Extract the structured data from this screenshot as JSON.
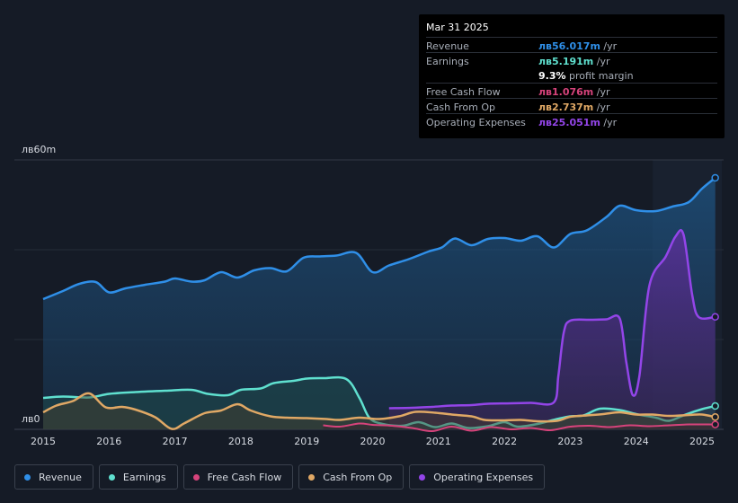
{
  "tooltip": {
    "date": "Mar 31 2025",
    "rows": {
      "revenue": {
        "label": "Revenue",
        "value": "лв56.017m",
        "unit": " /yr"
      },
      "earnings": {
        "label": "Earnings",
        "value": "лв5.191m",
        "unit": " /yr"
      },
      "margin": {
        "value": "9.3%",
        "text": " profit margin"
      },
      "fcf": {
        "label": "Free Cash Flow",
        "value": "лв1.076m",
        "unit": " /yr"
      },
      "cfo": {
        "label": "Cash From Op",
        "value": "лв2.737m",
        "unit": " /yr"
      },
      "opex": {
        "label": "Operating Expenses",
        "value": "лв25.051m",
        "unit": " /yr"
      }
    }
  },
  "legend": {
    "revenue": "Revenue",
    "earnings": "Earnings",
    "fcf": "Free Cash Flow",
    "cfo": "Cash From Op",
    "opex": "Operating Expenses"
  },
  "colors": {
    "revenue": "#2f8fe8",
    "earnings": "#5fe0cf",
    "fcf": "#d6437b",
    "cfo": "#e0a865",
    "opex": "#9345e8"
  },
  "chart_data": {
    "type": "area",
    "ylabel_top": "лв60m",
    "ylabel_bottom": "лв0",
    "ylim": [
      0,
      60
    ],
    "xlim": [
      2015,
      2025.3
    ],
    "x_ticks": [
      "2015",
      "2016",
      "2017",
      "2018",
      "2019",
      "2020",
      "2021",
      "2022",
      "2023",
      "2024",
      "2025"
    ],
    "forecast_start": 2024.25,
    "series": [
      {
        "key": "revenue",
        "name": "Revenue",
        "points": [
          [
            2015,
            29
          ],
          [
            2015.3,
            30.8
          ],
          [
            2015.55,
            32.4
          ],
          [
            2015.8,
            32.8
          ],
          [
            2016,
            30.5
          ],
          [
            2016.25,
            31.4
          ],
          [
            2016.55,
            32.2
          ],
          [
            2016.85,
            32.9
          ],
          [
            2017.0,
            33.6
          ],
          [
            2017.25,
            32.9
          ],
          [
            2017.45,
            33.2
          ],
          [
            2017.7,
            35.0
          ],
          [
            2017.95,
            33.8
          ],
          [
            2018.2,
            35.4
          ],
          [
            2018.45,
            35.9
          ],
          [
            2018.7,
            35.2
          ],
          [
            2018.95,
            38.2
          ],
          [
            2019.2,
            38.5
          ],
          [
            2019.45,
            38.7
          ],
          [
            2019.75,
            39.3
          ],
          [
            2020.0,
            35.0
          ],
          [
            2020.25,
            36.5
          ],
          [
            2020.55,
            37.9
          ],
          [
            2020.85,
            39.6
          ],
          [
            2021.05,
            40.5
          ],
          [
            2021.25,
            42.5
          ],
          [
            2021.5,
            41.0
          ],
          [
            2021.75,
            42.4
          ],
          [
            2022.0,
            42.6
          ],
          [
            2022.25,
            42.0
          ],
          [
            2022.5,
            43.0
          ],
          [
            2022.75,
            40.5
          ],
          [
            2023.0,
            43.5
          ],
          [
            2023.25,
            44.3
          ],
          [
            2023.55,
            47.3
          ],
          [
            2023.75,
            49.8
          ],
          [
            2024.0,
            48.8
          ],
          [
            2024.3,
            48.6
          ],
          [
            2024.55,
            49.6
          ],
          [
            2024.8,
            50.6
          ],
          [
            2025.0,
            53.6
          ],
          [
            2025.2,
            56.0
          ]
        ]
      },
      {
        "key": "earnings",
        "name": "Earnings",
        "points": [
          [
            2015,
            7.0
          ],
          [
            2015.3,
            7.3
          ],
          [
            2015.7,
            7.1
          ],
          [
            2016.0,
            7.9
          ],
          [
            2016.4,
            8.3
          ],
          [
            2016.85,
            8.6
          ],
          [
            2017.25,
            8.8
          ],
          [
            2017.5,
            7.9
          ],
          [
            2017.8,
            7.6
          ],
          [
            2018.0,
            8.8
          ],
          [
            2018.3,
            9.1
          ],
          [
            2018.5,
            10.3
          ],
          [
            2018.8,
            10.8
          ],
          [
            2019.0,
            11.3
          ],
          [
            2019.25,
            11.4
          ],
          [
            2019.6,
            11.2
          ],
          [
            2019.8,
            7.0
          ],
          [
            2019.95,
            2.6
          ],
          [
            2020.15,
            1.2
          ],
          [
            2020.45,
            0.8
          ],
          [
            2020.7,
            1.6
          ],
          [
            2020.95,
            0.5
          ],
          [
            2021.2,
            1.3
          ],
          [
            2021.45,
            0.3
          ],
          [
            2021.75,
            0.7
          ],
          [
            2022.0,
            1.6
          ],
          [
            2022.2,
            0.6
          ],
          [
            2022.5,
            1.2
          ],
          [
            2022.8,
            2.3
          ],
          [
            2023.0,
            2.9
          ],
          [
            2023.2,
            3.1
          ],
          [
            2023.45,
            4.6
          ],
          [
            2023.75,
            4.3
          ],
          [
            2024.0,
            3.4
          ],
          [
            2024.3,
            2.6
          ],
          [
            2024.5,
            1.9
          ],
          [
            2024.75,
            3.3
          ],
          [
            2025.0,
            4.5
          ],
          [
            2025.2,
            5.19
          ]
        ]
      },
      {
        "key": "fcf",
        "name": "Free Cash Flow",
        "points": [
          [
            2019.25,
            0.9
          ],
          [
            2019.5,
            0.6
          ],
          [
            2019.8,
            1.3
          ],
          [
            2020.0,
            1.0
          ],
          [
            2020.3,
            0.8
          ],
          [
            2020.6,
            0.3
          ],
          [
            2020.9,
            -0.4
          ],
          [
            2021.2,
            0.6
          ],
          [
            2021.5,
            -0.3
          ],
          [
            2021.8,
            0.5
          ],
          [
            2022.1,
            0.0
          ],
          [
            2022.4,
            0.3
          ],
          [
            2022.7,
            -0.2
          ],
          [
            2023.0,
            0.6
          ],
          [
            2023.3,
            0.8
          ],
          [
            2023.6,
            0.5
          ],
          [
            2023.9,
            0.9
          ],
          [
            2024.2,
            0.7
          ],
          [
            2024.5,
            0.9
          ],
          [
            2024.8,
            1.1
          ],
          [
            2025.2,
            1.08
          ]
        ]
      },
      {
        "key": "cfo",
        "name": "Cash From Op",
        "points": [
          [
            2015,
            3.8
          ],
          [
            2015.2,
            5.3
          ],
          [
            2015.45,
            6.3
          ],
          [
            2015.7,
            8.0
          ],
          [
            2015.95,
            4.9
          ],
          [
            2016.2,
            5.0
          ],
          [
            2016.4,
            4.4
          ],
          [
            2016.7,
            2.7
          ],
          [
            2016.95,
            0.1
          ],
          [
            2017.15,
            1.4
          ],
          [
            2017.45,
            3.6
          ],
          [
            2017.7,
            4.2
          ],
          [
            2017.95,
            5.6
          ],
          [
            2018.15,
            4.2
          ],
          [
            2018.45,
            2.9
          ],
          [
            2018.7,
            2.6
          ],
          [
            2019.0,
            2.5
          ],
          [
            2019.3,
            2.3
          ],
          [
            2019.5,
            2.1
          ],
          [
            2019.8,
            2.6
          ],
          [
            2020.1,
            2.3
          ],
          [
            2020.4,
            2.9
          ],
          [
            2020.65,
            3.9
          ],
          [
            2020.95,
            3.7
          ],
          [
            2021.2,
            3.3
          ],
          [
            2021.5,
            2.9
          ],
          [
            2021.7,
            2.1
          ],
          [
            2021.95,
            2.0
          ],
          [
            2022.25,
            2.1
          ],
          [
            2022.5,
            1.8
          ],
          [
            2022.8,
            1.9
          ],
          [
            2023.0,
            2.8
          ],
          [
            2023.25,
            3.1
          ],
          [
            2023.5,
            3.4
          ],
          [
            2023.75,
            3.8
          ],
          [
            2024.0,
            3.3
          ],
          [
            2024.25,
            3.3
          ],
          [
            2024.5,
            3.0
          ],
          [
            2024.8,
            3.2
          ],
          [
            2025.0,
            3.3
          ],
          [
            2025.2,
            2.74
          ]
        ]
      },
      {
        "key": "opex",
        "name": "Operating Expenses",
        "points": [
          [
            2020.25,
            4.7
          ],
          [
            2020.6,
            4.8
          ],
          [
            2020.9,
            5.0
          ],
          [
            2021.2,
            5.3
          ],
          [
            2021.5,
            5.4
          ],
          [
            2021.75,
            5.7
          ],
          [
            2022.1,
            5.8
          ],
          [
            2022.4,
            5.9
          ],
          [
            2022.75,
            6.0
          ],
          [
            2022.82,
            12.0
          ],
          [
            2022.9,
            21.5
          ],
          [
            2023.0,
            24.2
          ],
          [
            2023.3,
            24.4
          ],
          [
            2023.55,
            24.5
          ],
          [
            2023.75,
            24.7
          ],
          [
            2023.85,
            15.0
          ],
          [
            2023.95,
            7.6
          ],
          [
            2024.05,
            12.0
          ],
          [
            2024.2,
            32.0
          ],
          [
            2024.45,
            38.5
          ],
          [
            2024.6,
            43.0
          ],
          [
            2024.72,
            43.3
          ],
          [
            2024.85,
            30.0
          ],
          [
            2024.95,
            25.0
          ],
          [
            2025.2,
            25.05
          ]
        ]
      }
    ]
  }
}
